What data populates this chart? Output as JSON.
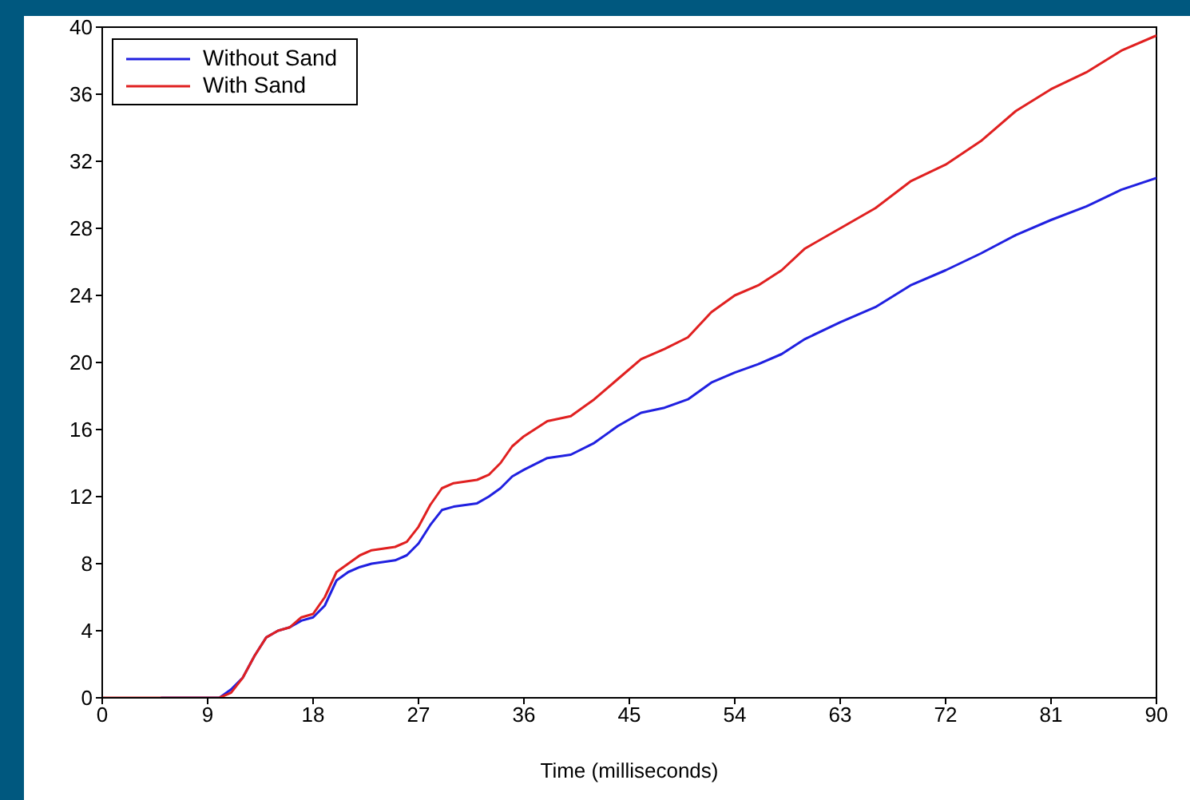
{
  "chart_data": {
    "type": "line",
    "xlabel": "Time (milliseconds)",
    "xlim": [
      0,
      90
    ],
    "xticks": [
      0,
      9,
      18,
      27,
      36,
      45,
      54,
      63,
      72,
      81,
      90
    ],
    "ylim": [
      0,
      40
    ],
    "yticks": [
      0,
      4,
      8,
      12,
      16,
      20,
      24,
      28,
      32,
      36,
      40
    ],
    "grid": false,
    "legend": "top left",
    "marker": "none",
    "line_style": "solid",
    "series": [
      {
        "name": "Without Sand",
        "color": "#2020e0",
        "x": [
          5,
          10,
          11,
          12,
          13,
          14,
          15,
          16,
          17,
          18,
          19,
          20,
          21,
          22,
          23,
          25,
          26,
          27,
          28,
          29,
          30,
          32,
          33,
          34,
          35,
          36,
          38,
          40,
          42,
          44,
          46,
          48,
          50,
          52,
          54,
          56,
          58,
          60,
          63,
          66,
          69,
          72,
          75,
          78,
          81,
          84,
          87,
          90
        ],
        "values": [
          0,
          0,
          0.5,
          1.2,
          2.5,
          3.6,
          4.0,
          4.2,
          4.6,
          4.8,
          5.5,
          7.0,
          7.5,
          7.8,
          8.0,
          8.2,
          8.5,
          9.2,
          10.3,
          11.2,
          11.4,
          11.6,
          12.0,
          12.5,
          13.2,
          13.6,
          14.3,
          14.5,
          15.2,
          16.2,
          17.0,
          17.3,
          17.8,
          18.8,
          19.4,
          19.9,
          20.5,
          21.4,
          22.4,
          23.3,
          24.6,
          25.5,
          26.5,
          27.6,
          28.5,
          29.3,
          30.3,
          31.0
        ]
      },
      {
        "name": "With Sand",
        "color": "#e02020",
        "x": [
          0,
          5,
          10,
          11,
          12,
          13,
          14,
          15,
          16,
          17,
          18,
          19,
          20,
          21,
          22,
          23,
          25,
          26,
          27,
          28,
          29,
          30,
          32,
          33,
          34,
          35,
          36,
          38,
          40,
          42,
          44,
          46,
          48,
          50,
          52,
          54,
          56,
          58,
          60,
          63,
          66,
          69,
          72,
          75,
          78,
          81,
          84,
          87,
          90
        ],
        "values": [
          0,
          0,
          0,
          0.3,
          1.2,
          2.5,
          3.6,
          4.0,
          4.2,
          4.8,
          5.0,
          6.0,
          7.5,
          8.0,
          8.5,
          8.8,
          9.0,
          9.3,
          10.2,
          11.5,
          12.5,
          12.8,
          13.0,
          13.3,
          14.0,
          15.0,
          15.6,
          16.5,
          16.8,
          17.8,
          19.0,
          20.2,
          20.8,
          21.5,
          23.0,
          24.0,
          24.6,
          25.5,
          26.8,
          28.0,
          29.2,
          30.8,
          31.8,
          33.2,
          35.0,
          36.3,
          37.3,
          38.6,
          39.5
        ]
      }
    ]
  }
}
